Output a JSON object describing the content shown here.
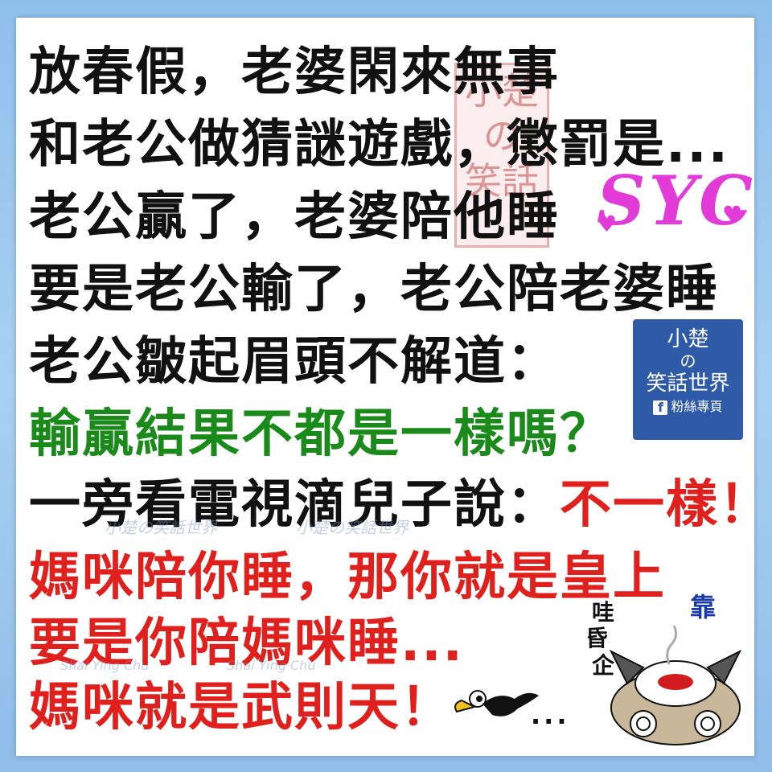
{
  "lines": [
    {
      "text": "放春假，老婆閑來無事",
      "color": "black"
    },
    {
      "text": "和老公做猜謎遊戲，懲罰是...",
      "color": "black"
    },
    {
      "text": "老公贏了，老婆陪他睡",
      "color": "black"
    },
    {
      "text": "要是老公輸了，老公陪老婆睡",
      "color": "black"
    },
    {
      "text": "老公皺起眉頭不解道：",
      "color": "black"
    },
    {
      "text": "輸贏結果不都是一樣嗎？",
      "color": "green"
    },
    {
      "text_black": "一旁看電視滴兒子說：",
      "text_red": "不一樣！"
    },
    {
      "text": "媽咪陪你睡，那你就是皇上",
      "color": "red"
    },
    {
      "text": "要是你陪媽咪睡...",
      "color": "red"
    },
    {
      "text": "媽咪就是武則天！",
      "color": "red"
    }
  ],
  "seal": {
    "line1": "小楚",
    "line2": "の",
    "line3": "笑話"
  },
  "logo_syc": "SYC",
  "fb_badge": {
    "line1": "小楚",
    "line2": "の",
    "line3": "笑話世界",
    "line4": "粉絲專頁",
    "fb_letter": "f"
  },
  "watermarks": {
    "cn1": "小楚の笑話世界",
    "cn2": "小楚の笑話世界",
    "en1": "Shai Ying Chu",
    "en2": "Shai Ying Chu"
  },
  "cat": {
    "word1": "哇",
    "word2": "昏",
    "word3": "企",
    "word4": "靠"
  },
  "trailing_dots": "...",
  "colors": {
    "black": "#111111",
    "green": "#1a8a1a",
    "red": "#e0201c",
    "logo": "#e23bd8",
    "badge": "#2e5aa8",
    "frame": "#9ec8ee"
  },
  "icons": [
    "heart-icon",
    "facebook-icon",
    "bird-icon",
    "cat-cartoon-icon"
  ]
}
